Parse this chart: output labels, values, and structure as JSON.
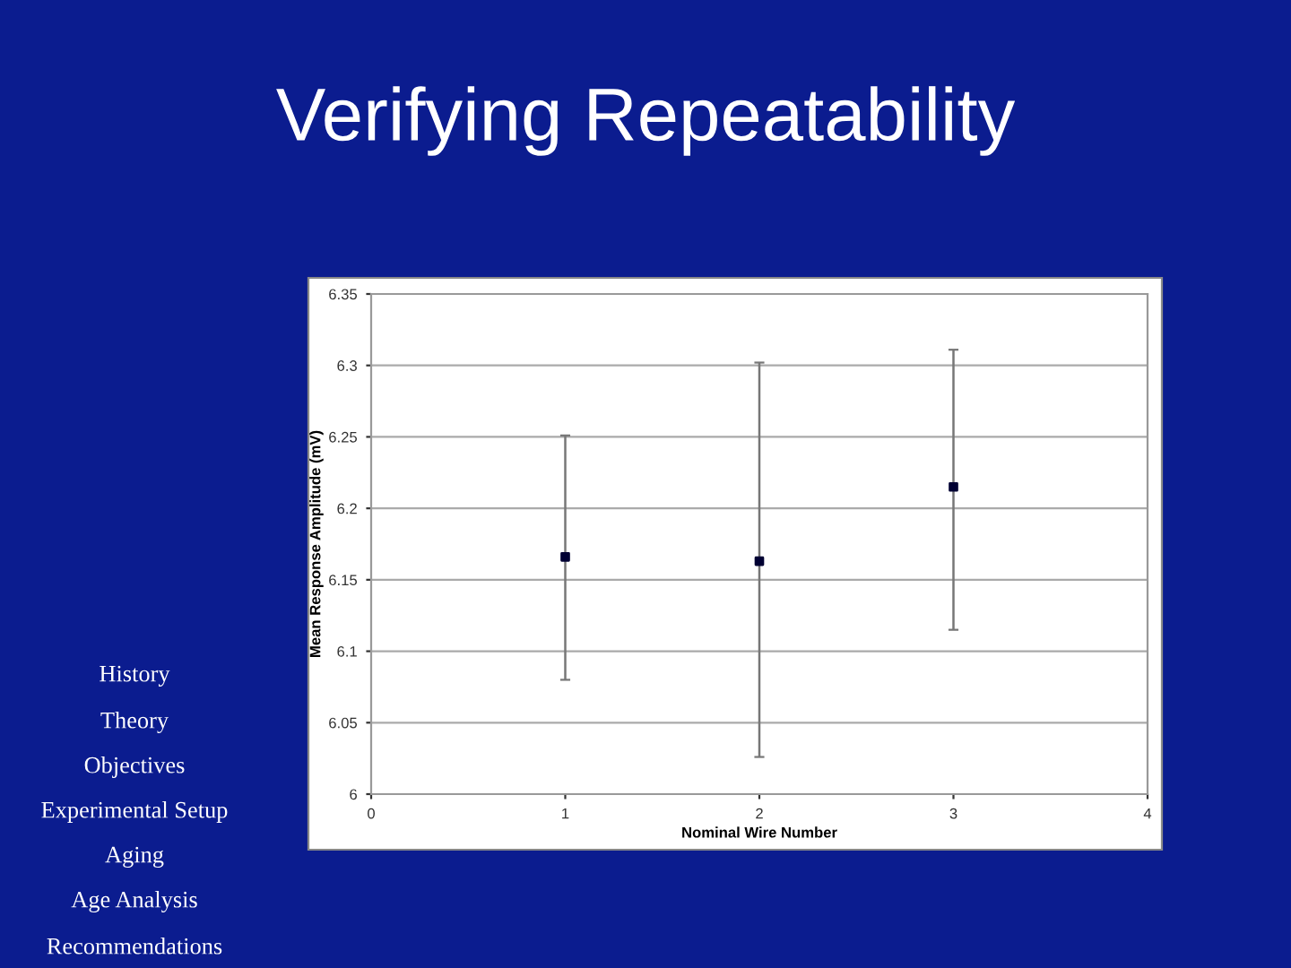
{
  "chart_data": {
    "type": "scatter",
    "title": "Verifying Repeatability",
    "xlabel": "Nominal Wire Number",
    "ylabel": "Mean Response Amplitude (mV)",
    "x": [
      1,
      2,
      3
    ],
    "series": [
      {
        "color": "#000033",
        "values": [
          6.166,
          6.163,
          6.215
        ],
        "errors": [
          [
            6.08,
            6.251
          ],
          [
            6.026,
            6.302
          ],
          [
            6.115,
            6.311
          ]
        ]
      }
    ],
    "xlim": [
      0,
      4
    ],
    "xticks": [
      0,
      1,
      2,
      3,
      4
    ],
    "ylim": [
      6,
      6.35
    ],
    "yticks": [
      6,
      6.05,
      6.1,
      6.15,
      6.2,
      6.25,
      6.3,
      6.35
    ],
    "grid": "y",
    "marker": "square",
    "annotations": [
      "History",
      "Theory",
      "Objectives",
      "Experimental Setup",
      "Aging",
      "Age Analysis",
      "Recommendations"
    ]
  }
}
